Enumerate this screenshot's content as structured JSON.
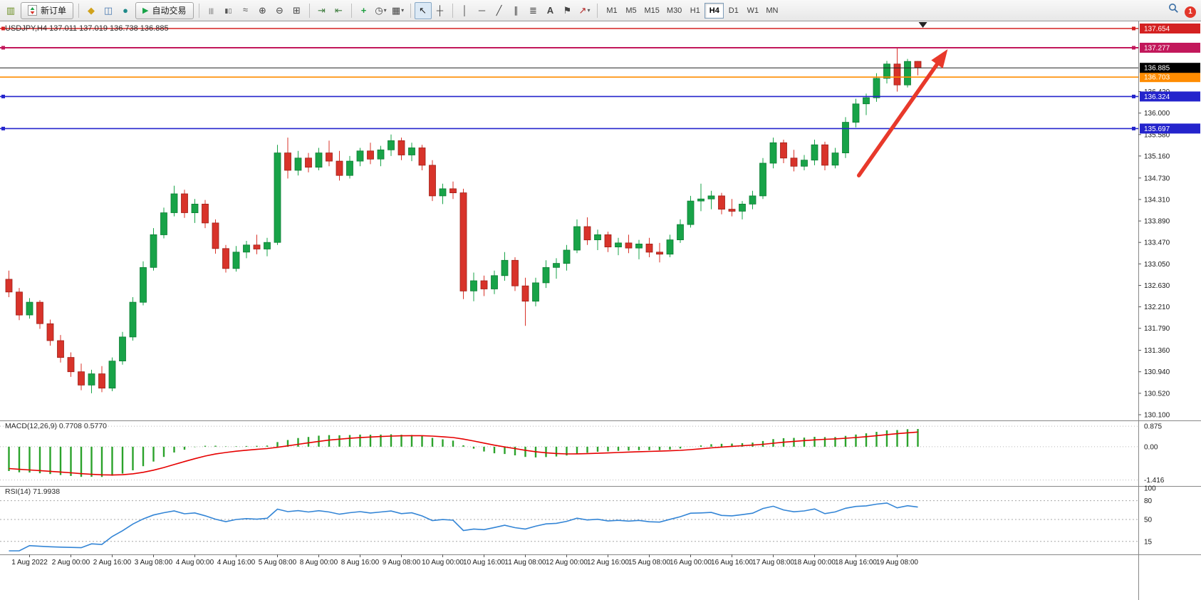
{
  "toolbar": {
    "new_order_label": "新订单",
    "autotrade_label": "自动交易",
    "timeframes": [
      "M1",
      "M5",
      "M15",
      "M30",
      "H1",
      "H4",
      "D1",
      "W1",
      "MN"
    ],
    "active_timeframe": "H4",
    "icon_groups": {
      "file": [
        "new-chart-icon"
      ],
      "apps": [
        "profiles-icon",
        "market-watch-icon",
        "navigator-icon"
      ],
      "charttype": [
        "chart-bars-icon",
        "chart-candles-icon",
        "chart-line-icon"
      ],
      "zoom": [
        "zoom-in-icon",
        "zoom-out-icon",
        "tile-windows-icon"
      ],
      "scroll": [
        "auto-scroll-icon",
        "chart-shift-icon"
      ],
      "ind": [
        "indicators-icon",
        "periods-icon",
        "templates-icon"
      ],
      "cursor": [
        "cursor-icon",
        "crosshair-icon"
      ],
      "draw": [
        "vertical-line-icon",
        "horizontal-line-icon",
        "trendline-icon",
        "channel-icon",
        "fibonacci-icon",
        "text-icon",
        "label-icon",
        "arrows-icon"
      ],
      "right": [
        "search-icon",
        "account-icon"
      ]
    }
  },
  "chart_data": {
    "type": "candlestick",
    "symbol": "USDJPY",
    "timeframe": "H4",
    "title": "USDJPY,H4",
    "ohlc_display": "137.011 137.019 136.738 136.885",
    "up_color": "#18a348",
    "down_color": "#d8332a",
    "price_axis": {
      "ticks": [
        136.42,
        136.0,
        135.58,
        135.16,
        134.73,
        134.31,
        133.89,
        133.47,
        133.05,
        132.63,
        132.21,
        131.79,
        131.36,
        130.94,
        130.52,
        130.1
      ]
    },
    "levels": [
      {
        "price": 137.654,
        "label": "137.654",
        "color": "#d42121",
        "width": 1.4,
        "handles": true
      },
      {
        "price": 137.277,
        "label": "137.277",
        "color": "#c2185b",
        "width": 2,
        "handles": true
      },
      {
        "price": 136.703,
        "label": "136.703",
        "color": "#ff8c00",
        "width": 1.6,
        "handles": false
      },
      {
        "price": 136.324,
        "label": "136.324",
        "color": "#2424cc",
        "width": 1.6,
        "handles": true
      },
      {
        "price": 135.697,
        "label": "135.697",
        "color": "#2424cc",
        "width": 1.6,
        "handles": true
      }
    ],
    "current_price": {
      "value": 136.885,
      "label": "136.885",
      "badge_color": "#000000",
      "line_color": "#222222"
    },
    "candles": [
      [
        132.75,
        132.92,
        132.4,
        132.5
      ],
      [
        132.5,
        132.58,
        131.95,
        132.05
      ],
      [
        132.05,
        132.38,
        131.98,
        132.3
      ],
      [
        132.3,
        132.34,
        131.78,
        131.88
      ],
      [
        131.88,
        131.96,
        131.45,
        131.55
      ],
      [
        131.55,
        131.66,
        131.12,
        131.22
      ],
      [
        131.22,
        131.32,
        130.84,
        130.94
      ],
      [
        130.94,
        131.1,
        130.58,
        130.68
      ],
      [
        130.68,
        130.98,
        130.52,
        130.9
      ],
      [
        130.9,
        131.05,
        130.54,
        130.62
      ],
      [
        130.62,
        131.22,
        130.56,
        131.15
      ],
      [
        131.15,
        131.72,
        131.08,
        131.62
      ],
      [
        131.62,
        132.4,
        131.55,
        132.3
      ],
      [
        132.3,
        133.1,
        132.24,
        132.98
      ],
      [
        132.98,
        133.75,
        132.92,
        133.62
      ],
      [
        133.62,
        134.15,
        133.55,
        134.05
      ],
      [
        134.05,
        134.58,
        133.98,
        134.42
      ],
      [
        134.42,
        134.5,
        133.95,
        134.05
      ],
      [
        134.05,
        134.32,
        133.85,
        134.22
      ],
      [
        134.22,
        134.3,
        133.75,
        133.85
      ],
      [
        133.85,
        133.92,
        133.25,
        133.35
      ],
      [
        133.35,
        133.42,
        132.88,
        132.96
      ],
      [
        132.96,
        133.4,
        132.9,
        133.28
      ],
      [
        133.28,
        133.5,
        133.16,
        133.42
      ],
      [
        133.42,
        133.62,
        133.24,
        133.34
      ],
      [
        133.34,
        133.56,
        133.2,
        133.47
      ],
      [
        133.47,
        135.38,
        133.42,
        135.22
      ],
      [
        135.22,
        135.52,
        134.72,
        134.88
      ],
      [
        134.88,
        135.26,
        134.78,
        135.12
      ],
      [
        135.12,
        135.22,
        134.84,
        134.94
      ],
      [
        134.94,
        135.32,
        134.88,
        135.22
      ],
      [
        135.22,
        135.46,
        134.96,
        135.06
      ],
      [
        135.06,
        135.26,
        134.68,
        134.78
      ],
      [
        134.78,
        135.16,
        134.72,
        135.06
      ],
      [
        135.06,
        135.32,
        134.96,
        135.26
      ],
      [
        135.26,
        135.42,
        135.0,
        135.1
      ],
      [
        135.1,
        135.36,
        134.96,
        135.28
      ],
      [
        135.28,
        135.58,
        135.16,
        135.46
      ],
      [
        135.46,
        135.52,
        135.08,
        135.18
      ],
      [
        135.18,
        135.42,
        135.06,
        135.32
      ],
      [
        135.32,
        135.38,
        134.88,
        134.98
      ],
      [
        134.98,
        135.08,
        134.28,
        134.38
      ],
      [
        134.38,
        134.62,
        134.22,
        134.52
      ],
      [
        134.52,
        134.66,
        134.32,
        134.44
      ],
      [
        134.44,
        134.52,
        132.36,
        132.52
      ],
      [
        132.52,
        132.88,
        132.32,
        132.72
      ],
      [
        132.72,
        132.82,
        132.42,
        132.56
      ],
      [
        132.56,
        132.92,
        132.46,
        132.82
      ],
      [
        132.82,
        133.28,
        132.72,
        133.12
      ],
      [
        133.12,
        133.18,
        132.52,
        132.62
      ],
      [
        132.62,
        132.78,
        131.84,
        132.32
      ],
      [
        132.32,
        132.78,
        132.22,
        132.68
      ],
      [
        132.68,
        133.12,
        132.58,
        132.98
      ],
      [
        132.98,
        133.16,
        132.76,
        133.06
      ],
      [
        133.06,
        133.42,
        132.92,
        133.32
      ],
      [
        133.32,
        133.92,
        133.26,
        133.78
      ],
      [
        133.78,
        133.96,
        133.42,
        133.52
      ],
      [
        133.52,
        133.72,
        133.32,
        133.62
      ],
      [
        133.62,
        133.68,
        133.28,
        133.38
      ],
      [
        133.38,
        133.56,
        133.22,
        133.46
      ],
      [
        133.46,
        133.62,
        133.26,
        133.36
      ],
      [
        133.36,
        133.52,
        133.14,
        133.44
      ],
      [
        133.44,
        133.56,
        133.18,
        133.28
      ],
      [
        133.28,
        133.46,
        133.08,
        133.24
      ],
      [
        133.24,
        133.62,
        133.18,
        133.52
      ],
      [
        133.52,
        133.92,
        133.46,
        133.82
      ],
      [
        133.82,
        134.38,
        133.76,
        134.28
      ],
      [
        134.28,
        134.62,
        134.08,
        134.32
      ],
      [
        134.32,
        134.48,
        134.12,
        134.38
      ],
      [
        134.38,
        134.44,
        134.02,
        134.12
      ],
      [
        134.12,
        134.32,
        133.98,
        134.08
      ],
      [
        134.08,
        134.28,
        133.92,
        134.22
      ],
      [
        134.22,
        134.48,
        134.12,
        134.38
      ],
      [
        134.38,
        135.12,
        134.32,
        135.02
      ],
      [
        135.02,
        135.52,
        134.92,
        135.42
      ],
      [
        135.42,
        135.48,
        135.02,
        135.12
      ],
      [
        135.12,
        135.28,
        134.86,
        134.96
      ],
      [
        134.96,
        135.18,
        134.88,
        135.08
      ],
      [
        135.08,
        135.48,
        134.98,
        135.38
      ],
      [
        135.38,
        135.44,
        134.88,
        134.98
      ],
      [
        134.98,
        135.32,
        134.92,
        135.22
      ],
      [
        135.22,
        135.92,
        135.12,
        135.82
      ],
      [
        135.82,
        136.28,
        135.72,
        136.18
      ],
      [
        136.18,
        136.38,
        135.96,
        136.3
      ],
      [
        136.3,
        136.78,
        136.22,
        136.68
      ],
      [
        136.68,
        137.02,
        136.58,
        136.96
      ],
      [
        136.96,
        137.27,
        136.42,
        136.55
      ],
      [
        136.55,
        137.06,
        136.5,
        137.01
      ],
      [
        137.011,
        137.019,
        136.738,
        136.885
      ]
    ],
    "x_labels": [
      {
        "i": 2,
        "t": "1 Aug 2022"
      },
      {
        "i": 6,
        "t": "2 Aug 00:00"
      },
      {
        "i": 10,
        "t": "2 Aug 16:00"
      },
      {
        "i": 14,
        "t": "3 Aug 08:00"
      },
      {
        "i": 18,
        "t": "4 Aug 00:00"
      },
      {
        "i": 22,
        "t": "4 Aug 16:00"
      },
      {
        "i": 26,
        "t": "5 Aug 08:00"
      },
      {
        "i": 30,
        "t": "8 Aug 00:00"
      },
      {
        "i": 34,
        "t": "8 Aug 16:00"
      },
      {
        "i": 38,
        "t": "9 Aug 08:00"
      },
      {
        "i": 42,
        "t": "10 Aug 00:00"
      },
      {
        "i": 46,
        "t": "10 Aug 16:00"
      },
      {
        "i": 50,
        "t": "11 Aug 08:00"
      },
      {
        "i": 54,
        "t": "12 Aug 00:00"
      },
      {
        "i": 58,
        "t": "12 Aug 16:00"
      },
      {
        "i": 62,
        "t": "15 Aug 08:00"
      },
      {
        "i": 66,
        "t": "16 Aug 00:00"
      },
      {
        "i": 70,
        "t": "16 Aug 16:00"
      },
      {
        "i": 74,
        "t": "17 Aug 08:00"
      },
      {
        "i": 78,
        "t": "18 Aug 00:00"
      },
      {
        "i": 82,
        "t": "18 Aug 16:00"
      },
      {
        "i": 86,
        "t": "19 Aug 08:00"
      }
    ],
    "arrow_annotation": {
      "from_index": 82.6,
      "from_price": 134.78,
      "to_index": 91.2,
      "to_price": 137.25,
      "color": "#e8392b",
      "width": 5.5
    },
    "chart_shift_marker": {
      "index": 88.8,
      "color": "#222222"
    },
    "macd": {
      "label": "MACD(12,26,9)",
      "values_text": "0.7708 0.5770",
      "fast": 12,
      "slow": 26,
      "signal": 9,
      "hist_color": "#2ba32b",
      "signal_color": "#e60000",
      "scale_ticks": [
        "0.875",
        "0.00",
        "-1.416"
      ],
      "scale_values": [
        0.875,
        0,
        -1.416
      ]
    },
    "rsi": {
      "label": "RSI(14)",
      "value_text": "71.9938",
      "period": 14,
      "line_color": "#3385d6",
      "levels": [
        80,
        50,
        15
      ],
      "scale_ticks": [
        "100",
        "80",
        "50",
        "15"
      ],
      "scale_values": [
        100,
        80,
        50,
        15
      ]
    }
  }
}
